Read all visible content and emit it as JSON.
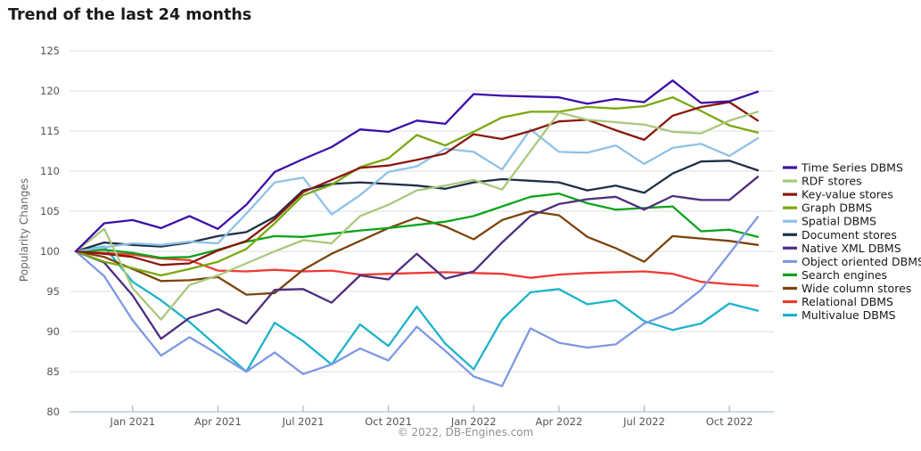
{
  "page_title": "Trend of the last 24 months",
  "chart_data": {
    "type": "line",
    "title": "Trend of the last 24 months",
    "ylabel": "Popularity Changes",
    "footer_note": "© 2022, DB-Engines.com",
    "ylim": [
      80,
      125
    ],
    "yticks": [
      80,
      85,
      90,
      95,
      100,
      105,
      110,
      115,
      120,
      125
    ],
    "grid": true,
    "legend_position": "right",
    "x_months": [
      "Nov 2020",
      "Dec 2020",
      "Jan 2021",
      "Feb 2021",
      "Mar 2021",
      "Apr 2021",
      "May 2021",
      "Jun 2021",
      "Jul 2021",
      "Aug 2021",
      "Sep 2021",
      "Oct 2021",
      "Nov 2021",
      "Dec 2021",
      "Jan 2022",
      "Feb 2022",
      "Mar 2022",
      "Apr 2022",
      "May 2022",
      "Jun 2022",
      "Jul 2022",
      "Aug 2022",
      "Sep 2022",
      "Oct 2022",
      "Nov 2022"
    ],
    "x_tick_indices": [
      2,
      5,
      8,
      11,
      14,
      17,
      20,
      23
    ],
    "x_tick_labels": [
      "Jan 2021",
      "Apr 2021",
      "Jul 2021",
      "Oct 2021",
      "Jan 2022",
      "Apr 2022",
      "Jul 2022",
      "Oct 2022"
    ],
    "series": [
      {
        "name": "Time Series DBMS",
        "color": "#3d0fa8",
        "values": [
          100,
          103.5,
          103.9,
          102.9,
          104.4,
          102.8,
          105.8,
          109.9,
          111.5,
          113.0,
          115.2,
          114.9,
          116.3,
          115.9,
          119.6,
          119.4,
          119.3,
          119.2,
          118.4,
          119.0,
          118.6,
          121.3,
          118.5,
          118.7,
          119.9
        ]
      },
      {
        "name": "RDF stores",
        "color": "#a9c87d",
        "values": [
          100,
          102.8,
          95.4,
          91.5,
          95.8,
          97.0,
          98.5,
          100.0,
          101.4,
          101.0,
          104.4,
          105.8,
          107.6,
          108.2,
          108.9,
          107.7,
          112.5,
          117.3,
          116.4,
          116.1,
          115.8,
          114.9,
          114.7,
          116.3,
          117.4
        ]
      },
      {
        "name": "Key-value stores",
        "color": "#8a170e",
        "values": [
          100,
          99.7,
          99.3,
          98.3,
          98.5,
          100.1,
          101.3,
          104.0,
          107.4,
          108.9,
          110.4,
          110.7,
          111.4,
          112.2,
          114.6,
          114.0,
          115.0,
          116.2,
          116.4,
          115.1,
          113.9,
          116.9,
          118.0,
          118.6,
          116.3
        ]
      },
      {
        "name": "Graph DBMS",
        "color": "#7aa80f",
        "values": [
          100,
          98.7,
          97.9,
          97.0,
          97.8,
          98.7,
          100.3,
          103.5,
          107.0,
          108.3,
          110.5,
          111.6,
          114.5,
          113.2,
          114.9,
          116.7,
          117.4,
          117.4,
          118.0,
          117.8,
          118.1,
          119.2,
          117.5,
          115.7,
          114.8
        ]
      },
      {
        "name": "Spatial DBMS",
        "color": "#8fc1e7",
        "values": [
          100,
          100.5,
          101.0,
          100.8,
          101.2,
          101.0,
          104.7,
          108.6,
          109.2,
          104.6,
          107.0,
          109.9,
          110.6,
          112.8,
          112.4,
          110.2,
          115.2,
          112.4,
          112.3,
          113.2,
          110.9,
          112.9,
          113.4,
          111.9,
          114.1
        ]
      },
      {
        "name": "Document stores",
        "color": "#1e3146",
        "values": [
          100,
          101.1,
          100.8,
          100.6,
          101.1,
          101.9,
          102.4,
          104.3,
          107.6,
          108.4,
          108.6,
          108.4,
          108.2,
          107.8,
          108.6,
          109.0,
          108.8,
          108.6,
          107.6,
          108.2,
          107.3,
          109.7,
          111.2,
          111.3,
          110.1
        ]
      },
      {
        "name": "Native XML DBMS",
        "color": "#4e2d80",
        "values": [
          100,
          98.6,
          94.5,
          89.1,
          91.7,
          92.8,
          91.0,
          95.2,
          95.3,
          93.6,
          97.0,
          96.5,
          99.7,
          96.6,
          97.5,
          101.1,
          104.4,
          105.9,
          106.5,
          106.8,
          105.2,
          106.9,
          106.4,
          106.4,
          109.3
        ]
      },
      {
        "name": "Object oriented DBMS",
        "color": "#7e99e2",
        "values": [
          100,
          96.9,
          91.4,
          87.0,
          89.3,
          87.2,
          85.0,
          87.4,
          84.7,
          85.9,
          87.9,
          86.4,
          90.6,
          87.6,
          84.4,
          83.2,
          90.4,
          88.6,
          88.0,
          88.4,
          91.0,
          92.4,
          95.2,
          99.7,
          104.3
        ]
      },
      {
        "name": "Search engines",
        "color": "#0ba41a",
        "values": [
          100,
          100.2,
          99.8,
          99.2,
          99.3,
          100.2,
          101.2,
          101.9,
          101.8,
          102.2,
          102.6,
          102.9,
          103.3,
          103.7,
          104.4,
          105.6,
          106.8,
          107.2,
          106.0,
          105.2,
          105.4,
          105.6,
          102.5,
          102.7,
          101.8
        ]
      },
      {
        "name": "Wide column stores",
        "color": "#7d440d",
        "values": [
          100,
          99.3,
          97.8,
          96.3,
          96.4,
          96.8,
          94.6,
          94.8,
          97.7,
          99.7,
          101.3,
          102.9,
          104.2,
          103.1,
          101.5,
          103.9,
          105.0,
          104.5,
          101.8,
          100.4,
          98.7,
          101.9,
          101.6,
          101.3,
          100.8
        ]
      },
      {
        "name": "Relational DBMS",
        "color": "#ee3a33",
        "values": [
          100,
          99.8,
          99.6,
          99.1,
          98.9,
          97.6,
          97.5,
          97.7,
          97.5,
          97.6,
          97.1,
          97.2,
          97.3,
          97.4,
          97.3,
          97.2,
          96.7,
          97.1,
          97.3,
          97.4,
          97.5,
          97.2,
          96.2,
          95.9,
          95.7
        ]
      },
      {
        "name": "Multivalue DBMS",
        "color": "#1db3ca",
        "values": [
          100,
          100.6,
          96.2,
          93.9,
          91.2,
          88.1,
          85.0,
          91.1,
          88.8,
          85.9,
          90.9,
          88.2,
          93.1,
          88.5,
          85.3,
          91.5,
          94.9,
          95.3,
          93.4,
          93.9,
          91.3,
          90.2,
          91.0,
          93.5,
          92.6
        ]
      }
    ]
  }
}
